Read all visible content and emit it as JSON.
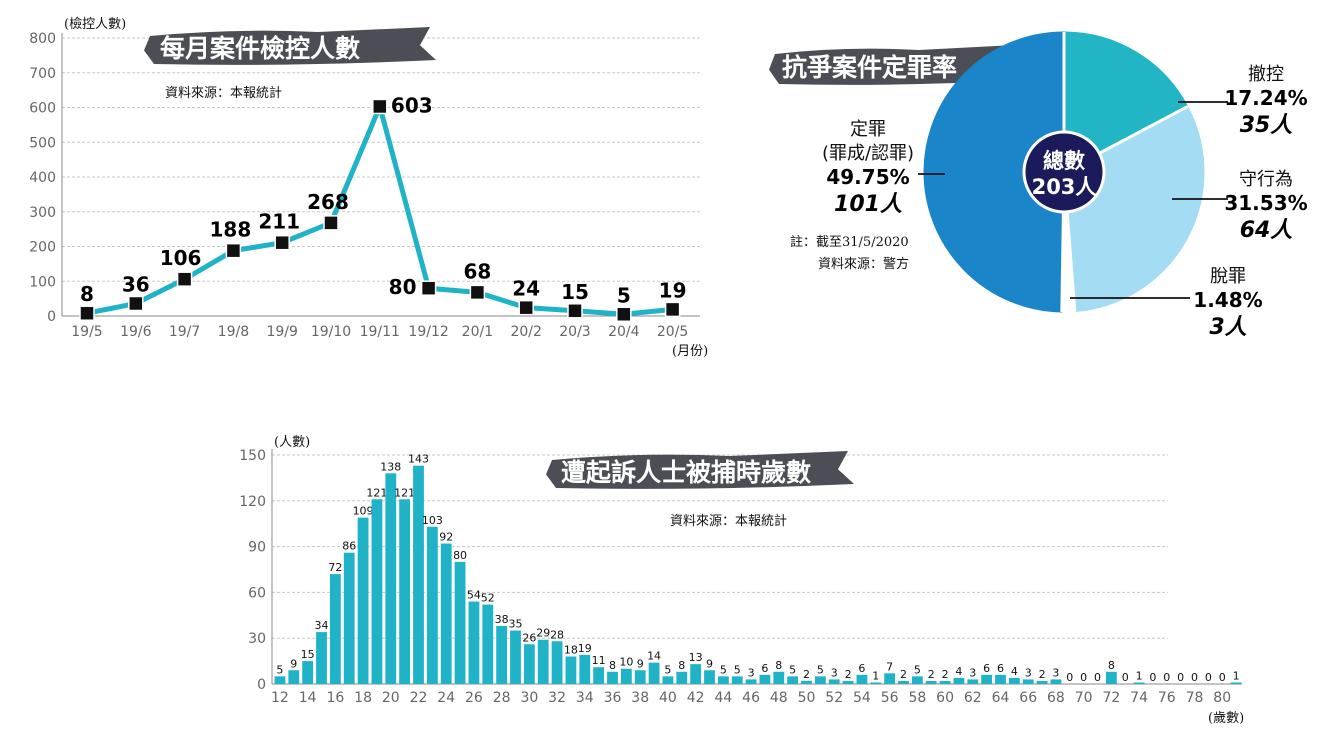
{
  "chart_data": [
    {
      "type": "line",
      "title": "每月案件檢控人數",
      "source": "資料來源：本報統計",
      "ylabel": "(檢控人數)",
      "xlabel": "(月份)",
      "ylim": [
        0,
        800
      ],
      "yticks": [
        "0",
        "100",
        "200",
        "300",
        "400",
        "500",
        "600",
        "700",
        "800"
      ],
      "categories": [
        "19/5",
        "19/6",
        "19/7",
        "19/8",
        "19/9",
        "19/10",
        "19/11",
        "19/12",
        "20/1",
        "20/2",
        "20/3",
        "20/4",
        "20/5"
      ],
      "values": [
        8,
        36,
        106,
        188,
        211,
        268,
        603,
        80,
        68,
        24,
        15,
        5,
        19
      ],
      "value_labels": [
        "8",
        "36",
        "106",
        "188",
        "211",
        "268",
        "603",
        "80",
        "68",
        "24",
        "15",
        "5",
        "19"
      ],
      "grid": true,
      "color": "#20b2c6"
    },
    {
      "type": "pie",
      "title": "抗爭案件定罪率",
      "center_label": [
        "總數",
        "203人"
      ],
      "note": "註：截至31/5/2020",
      "source": "資料來源：警方",
      "slices": [
        {
          "name": "撤控",
          "percent_label": "17.24%",
          "count_label": "35人",
          "value": 35,
          "color": "#22b5c5"
        },
        {
          "name": "守行為",
          "percent_label": "31.53%",
          "count_label": "64人",
          "value": 64,
          "color": "#a3dcf3"
        },
        {
          "name": "脫罪",
          "percent_label": "1.48%",
          "count_label": "3人",
          "value": 3,
          "color": "#ffffff"
        },
        {
          "name": "定罪",
          "sub": "(罪成/認罪)",
          "percent_label": "49.75%",
          "count_label": "101人",
          "value": 101,
          "color": "#1a85c9"
        }
      ]
    },
    {
      "type": "bar",
      "title": "遭起訴人士被捕時歲數",
      "source": "資料來源：本報統計",
      "ylabel": "(人數)",
      "xlabel": "(歲數)",
      "ylim": [
        0,
        150
      ],
      "yticks": [
        "0",
        "30",
        "60",
        "90",
        "120",
        "150"
      ],
      "x_start": 12,
      "xtick_labels": [
        "12",
        "14",
        "16",
        "18",
        "20",
        "22",
        "24",
        "26",
        "28",
        "30",
        "32",
        "34",
        "36",
        "38",
        "40",
        "42",
        "44",
        "46",
        "48",
        "50",
        "52",
        "54",
        "56",
        "58",
        "60",
        "62",
        "64",
        "66",
        "68",
        "70",
        "72",
        "74",
        "76",
        "78",
        "80"
      ],
      "values": [
        5,
        9,
        15,
        34,
        72,
        86,
        109,
        121,
        138,
        121,
        143,
        103,
        92,
        80,
        54,
        52,
        38,
        35,
        26,
        29,
        28,
        18,
        19,
        11,
        8,
        10,
        9,
        14,
        5,
        8,
        13,
        9,
        5,
        5,
        3,
        6,
        8,
        5,
        2,
        5,
        3,
        2,
        6,
        1,
        7,
        2,
        5,
        2,
        2,
        4,
        3,
        6,
        6,
        4,
        3,
        2,
        3,
        0,
        0,
        0,
        8,
        0,
        1,
        0,
        0,
        0,
        0,
        0,
        0,
        1
      ],
      "value_labels": [
        "5",
        "9",
        "15",
        "34",
        "72",
        "86",
        "109",
        "121",
        "138",
        "121",
        "143",
        "103",
        "92",
        "80",
        "54",
        "52",
        "38",
        "35",
        "26",
        "29",
        "28",
        "18",
        "19",
        "11",
        "8",
        "10",
        "9",
        "14",
        "5",
        "8",
        "13",
        "9",
        "5",
        "5",
        "3",
        "6",
        "8",
        "5",
        "2",
        "5",
        "3",
        "2",
        "6",
        "1",
        "7",
        "2",
        "5",
        "2",
        "2",
        "4",
        "3",
        "6",
        "6",
        "4",
        "3",
        "2",
        "3",
        "0",
        "0",
        "0",
        "8",
        "0",
        "1",
        "0",
        "0",
        "0",
        "0",
        "0",
        "0",
        "1"
      ],
      "grid": true,
      "color": "#20b2c6"
    }
  ]
}
